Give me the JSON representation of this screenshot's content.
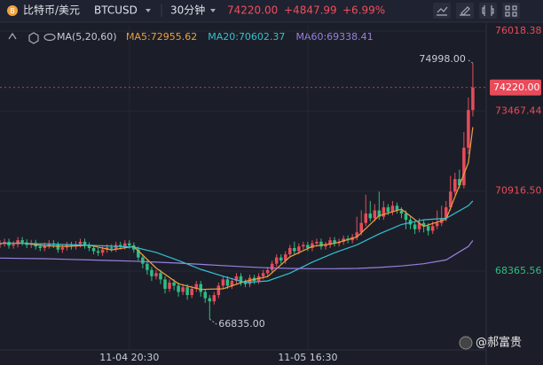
{
  "header": {
    "name": "比特币/美元",
    "symbol": "BTCUSD",
    "interval": "30分钟",
    "price": "74220.00",
    "change": "+4847.99",
    "change_pct": "+6.99%"
  },
  "chart_data": {
    "type": "candlestick",
    "ma_label": "MA(5,20,60)",
    "up_color": "#e84b5a",
    "down_color": "#2ebd85",
    "grid": true,
    "xlim": [
      0,
      109
    ],
    "xticks": [
      {
        "value": 29,
        "label": "11-04 20:30"
      },
      {
        "value": 69,
        "label": "11-05 16:30"
      }
    ],
    "ylim": [
      65850,
      76220
    ],
    "yticks": [
      76018.38,
      73467.44,
      {
        "value": 70916.5,
        "label": "70916.50"
      },
      68365.56
    ],
    "ytick_colors": [
      "#e84b5a",
      "#e84b5a",
      "#e84b5a",
      "#2ebd85"
    ],
    "open": [
      69200,
      69250,
      69300,
      69180,
      69220,
      69350,
      69280,
      69200,
      69260,
      69150,
      69100,
      69180,
      69250,
      69200,
      69050,
      69120,
      69200,
      69150,
      69220,
      69300,
      69180,
      69100,
      69000,
      68950,
      69050,
      69120,
      69080,
      69200,
      69150,
      69250,
      69180,
      69050,
      68800,
      68600,
      68400,
      68200,
      68300,
      68100,
      67800,
      68000,
      67900,
      67700,
      67850,
      67600,
      67800,
      67950,
      67700,
      67500,
      67400,
      67600,
      67900,
      68100,
      67900,
      68050,
      68200,
      68000,
      67950,
      68150,
      68050,
      68200,
      68300,
      68400,
      68600,
      68800,
      68700,
      68900,
      69100,
      69000,
      69150,
      69200,
      69100,
      69250,
      69300,
      69150,
      69200,
      69350,
      69250,
      69300,
      69400,
      69350,
      69450,
      69600,
      69900,
      70200,
      70050,
      70300,
      70100,
      70400,
      70250,
      70450,
      70300,
      70200,
      70000,
      69850,
      69700,
      69900,
      69800,
      69650,
      69800,
      69900,
      70050,
      70400,
      70900,
      71300,
      71100,
      72300,
      73500
    ],
    "high": [
      69350,
      69400,
      69400,
      69320,
      69450,
      69450,
      69380,
      69360,
      69360,
      69250,
      69280,
      69350,
      69350,
      69300,
      69220,
      69300,
      69300,
      69320,
      69400,
      69400,
      69280,
      69200,
      69100,
      69150,
      69220,
      69220,
      69300,
      69300,
      69350,
      69350,
      69280,
      69150,
      68900,
      68700,
      68500,
      68400,
      68400,
      68200,
      68100,
      68100,
      68000,
      67950,
      67950,
      67900,
      68050,
      68050,
      67800,
      67600,
      67700,
      68000,
      68200,
      68200,
      68150,
      68300,
      68300,
      68100,
      68250,
      68250,
      68300,
      68400,
      68500,
      68700,
      68900,
      68900,
      69000,
      69200,
      69300,
      69250,
      69300,
      69300,
      69350,
      69400,
      69400,
      69300,
      69450,
      69450,
      69400,
      69500,
      69500,
      69550,
      70100,
      70300,
      70800,
      70600,
      70500,
      70900,
      70600,
      70500,
      70600,
      70550,
      70400,
      70300,
      70100,
      69950,
      70050,
      70000,
      69900,
      69950,
      70300,
      70450,
      70600,
      71400,
      71500,
      71600,
      72800,
      73900,
      74998
    ],
    "low": [
      69100,
      69150,
      69080,
      69080,
      69120,
      69180,
      69100,
      69100,
      69050,
      69000,
      69000,
      69080,
      69100,
      68950,
      68950,
      69020,
      69050,
      69050,
      69120,
      69080,
      69000,
      68900,
      68850,
      68850,
      68950,
      68980,
      68980,
      69050,
      69050,
      69080,
      68950,
      68700,
      68450,
      68250,
      68050,
      68100,
      67950,
      67650,
      67700,
      67750,
      67550,
      67600,
      67450,
      67500,
      67700,
      67550,
      67350,
      66835,
      67300,
      67500,
      67800,
      67800,
      67800,
      67950,
      67900,
      67850,
      67850,
      67950,
      67950,
      68100,
      68200,
      68300,
      68500,
      68600,
      68600,
      68800,
      68900,
      68900,
      69050,
      69000,
      69000,
      69150,
      69050,
      69050,
      69100,
      69150,
      69150,
      69200,
      69250,
      69250,
      69350,
      69500,
      69800,
      69950,
      69950,
      70000,
      70000,
      70150,
      70150,
      70200,
      70050,
      69700,
      69700,
      69550,
      69600,
      69600,
      69500,
      69550,
      69700,
      69800,
      69950,
      70300,
      70800,
      71000,
      71000,
      72100,
      73300
    ],
    "close": [
      69250,
      69300,
      69180,
      69220,
      69350,
      69280,
      69200,
      69260,
      69150,
      69100,
      69180,
      69250,
      69200,
      69050,
      69120,
      69200,
      69150,
      69220,
      69300,
      69180,
      69100,
      69000,
      68950,
      69050,
      69120,
      69080,
      69200,
      69150,
      69250,
      69180,
      69050,
      68800,
      68600,
      68400,
      68200,
      68300,
      68100,
      67800,
      68000,
      67900,
      67700,
      67850,
      67600,
      67800,
      67950,
      67700,
      67500,
      67400,
      67600,
      67900,
      68100,
      67900,
      68050,
      68200,
      68000,
      67950,
      68150,
      68050,
      68200,
      68300,
      68400,
      68600,
      68800,
      68700,
      68900,
      69100,
      69000,
      69150,
      69200,
      69100,
      69250,
      69300,
      69150,
      69200,
      69350,
      69250,
      69300,
      69400,
      69350,
      69450,
      69600,
      69900,
      70200,
      70050,
      70300,
      70100,
      70400,
      70250,
      70450,
      70300,
      70200,
      70000,
      69850,
      69700,
      69900,
      69800,
      69650,
      69800,
      69900,
      70050,
      70400,
      70900,
      71300,
      71100,
      72300,
      73500,
      74220
    ],
    "series": [
      {
        "name": "MA5:72955.62",
        "color": "#f0a040",
        "x": [
          0,
          5,
          10,
          15,
          20,
          25,
          30,
          35,
          40,
          45,
          50,
          55,
          60,
          65,
          70,
          75,
          80,
          85,
          90,
          95,
          100,
          105,
          106
        ],
        "values": [
          69250,
          69260,
          69170,
          69150,
          69190,
          69040,
          69150,
          68460,
          67960,
          67780,
          67800,
          68040,
          68190,
          68820,
          69150,
          69250,
          69450,
          70130,
          70340,
          69790,
          70020,
          71820,
          72955.62
        ]
      },
      {
        "name": "MA20:70602.37",
        "color": "#35c0d0",
        "x": [
          0,
          5,
          10,
          15,
          20,
          25,
          30,
          35,
          40,
          45,
          50,
          55,
          60,
          65,
          70,
          75,
          80,
          85,
          90,
          95,
          100,
          105,
          106
        ],
        "values": [
          69250,
          69250,
          69230,
          69210,
          69190,
          69160,
          69130,
          68960,
          68700,
          68420,
          68200,
          68000,
          68050,
          68300,
          68650,
          68950,
          69200,
          69550,
          69850,
          70000,
          70050,
          70450,
          70602.37
        ]
      },
      {
        "name": "MA60:69338.41",
        "color": "#9b7fe0",
        "x": [
          0,
          5,
          10,
          15,
          20,
          25,
          30,
          35,
          40,
          45,
          50,
          55,
          60,
          65,
          70,
          75,
          80,
          85,
          90,
          95,
          100,
          105,
          106
        ],
        "values": [
          68780,
          68770,
          68760,
          68740,
          68720,
          68700,
          68680,
          68650,
          68620,
          68580,
          68540,
          68500,
          68470,
          68450,
          68440,
          68440,
          68450,
          68480,
          68530,
          68600,
          68720,
          69150,
          69338.41
        ]
      }
    ],
    "annotations": [
      {
        "label": "74998.00",
        "value": 74998,
        "x": 106
      },
      {
        "label": "66835.00",
        "value": 66835,
        "x": 47
      }
    ]
  },
  "watermark": "@郝富贵"
}
